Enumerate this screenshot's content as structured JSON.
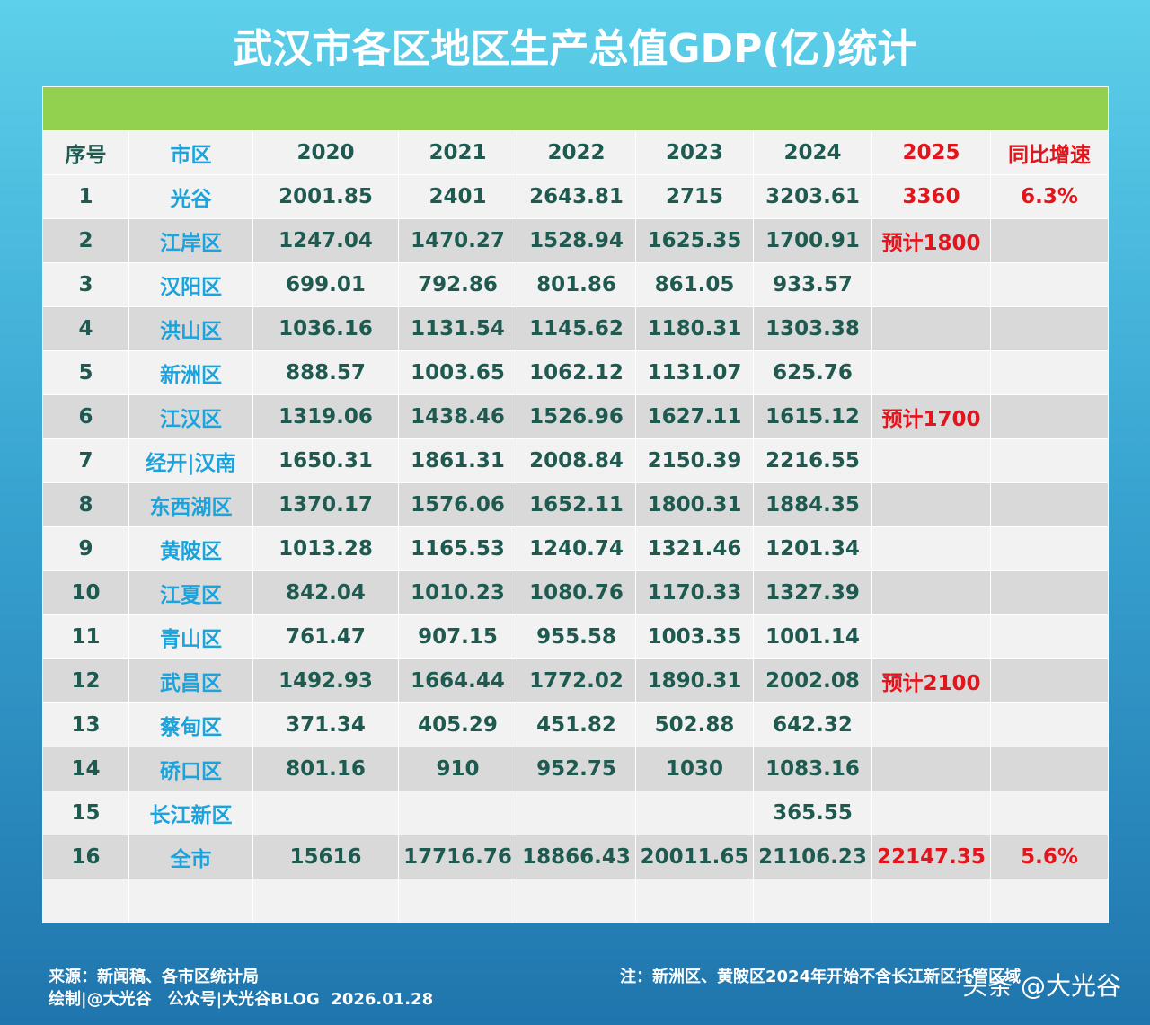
{
  "header": {
    "title": "武汉市各区地区生产总值GDP(亿)统计"
  },
  "table": {
    "columns": [
      "序号",
      "市区",
      "2020",
      "2021",
      "2022",
      "2023",
      "2024",
      "2025",
      "同比增速"
    ],
    "rows": [
      [
        "1",
        "光谷",
        "2001.85",
        "2401",
        "2643.81",
        "2715",
        "3203.61",
        "3360",
        "6.3%"
      ],
      [
        "2",
        "江岸区",
        "1247.04",
        "1470.27",
        "1528.94",
        "1625.35",
        "1700.91",
        "预计1800",
        null
      ],
      [
        "3",
        "汉阳区",
        "699.01",
        "792.86",
        "801.86",
        "861.05",
        "933.57",
        null,
        null
      ],
      [
        "4",
        "洪山区",
        "1036.16",
        "1131.54",
        "1145.62",
        "1180.31",
        "1303.38",
        null,
        null
      ],
      [
        "5",
        "新洲区",
        "888.57",
        "1003.65",
        "1062.12",
        "1131.07",
        "625.76",
        null,
        null
      ],
      [
        "6",
        "江汉区",
        "1319.06",
        "1438.46",
        "1526.96",
        "1627.11",
        "1615.12",
        "预计1700",
        null
      ],
      [
        "7",
        "经开|汉南",
        "1650.31",
        "1861.31",
        "2008.84",
        "2150.39",
        "2216.55",
        null,
        null
      ],
      [
        "8",
        "东西湖区",
        "1370.17",
        "1576.06",
        "1652.11",
        "1800.31",
        "1884.35",
        null,
        null
      ],
      [
        "9",
        "黄陂区",
        "1013.28",
        "1165.53",
        "1240.74",
        "1321.46",
        "1201.34",
        null,
        null
      ],
      [
        "10",
        "江夏区",
        "842.04",
        "1010.23",
        "1080.76",
        "1170.33",
        "1327.39",
        null,
        null
      ],
      [
        "11",
        "青山区",
        "761.47",
        "907.15",
        "955.58",
        "1003.35",
        "1001.14",
        null,
        null
      ],
      [
        "12",
        "武昌区",
        "1492.93",
        "1664.44",
        "1772.02",
        "1890.31",
        "2002.08",
        "预计2100",
        null
      ],
      [
        "13",
        "蔡甸区",
        "371.34",
        "405.29",
        "451.82",
        "502.88",
        "642.32",
        null,
        null
      ],
      [
        "14",
        "硚口区",
        "801.16",
        "910",
        "952.75",
        "1030",
        "1083.16",
        null,
        null
      ],
      [
        "15",
        "长江新区",
        null,
        null,
        null,
        null,
        "365.55",
        null,
        null
      ],
      [
        "16",
        "全市",
        "15616",
        "17716.76",
        "18866.43",
        "20011.65",
        "21106.23",
        "22147.35",
        "5.6%"
      ]
    ]
  },
  "footer": {
    "source": "来源：新闻稿、各市区统计局",
    "credit": "绘制|@大光谷　公众号|大光谷BLOG  2026.01.28",
    "note": "注：新洲区、黄陂区2024年开始不含长江新区托管区域",
    "watermark": "头条 @大光谷"
  }
}
